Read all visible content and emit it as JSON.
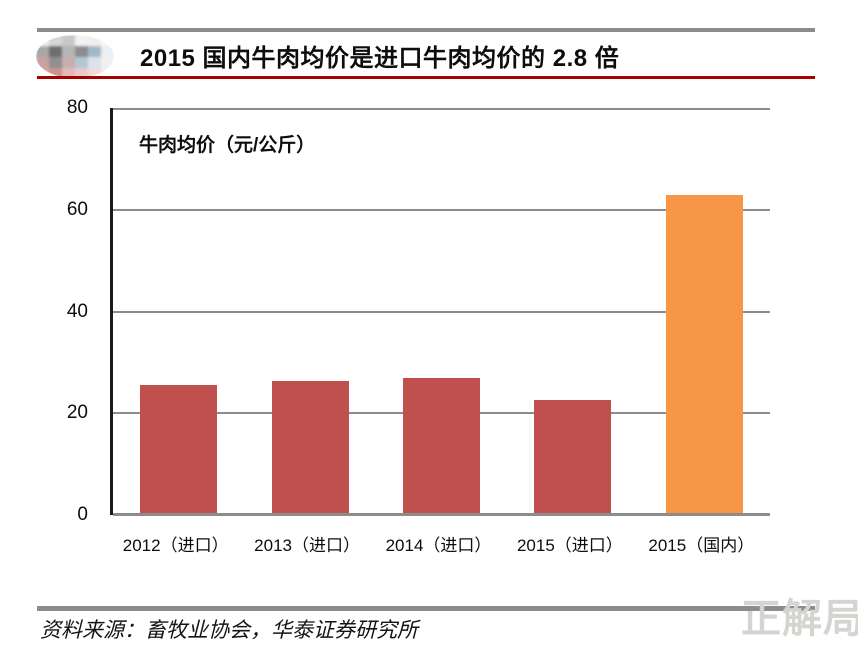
{
  "header": {
    "title": "2015 国内牛肉均价是进口牛肉均价的 2.8 倍"
  },
  "chart_data": {
    "type": "bar",
    "title": "2015 国内牛肉均价是进口牛肉均价的 2.8 倍",
    "inner_label": "牛肉均价（元/公斤）",
    "categories": [
      "2012（进口）",
      "2013（进口）",
      "2014（进口）",
      "2015（进口）",
      "2015（国内）"
    ],
    "values": [
      25.5,
      26.4,
      26.9,
      22.6,
      63
    ],
    "bar_colors": [
      "#c0504d",
      "#c0504d",
      "#c0504d",
      "#c0504d",
      "#f79646"
    ],
    "ylim": [
      0,
      80
    ],
    "yticks": [
      0,
      20,
      40,
      60,
      80
    ],
    "xlabel": "",
    "ylabel": "",
    "grid": true,
    "legend_position": "none"
  },
  "footer": {
    "source": "资料来源：畜牧业协会，华泰证券研究所"
  },
  "watermark": "正解局",
  "colors": {
    "import_bar": "#c0504d",
    "domestic_bar": "#f79646",
    "title_underline": "#a40000",
    "divider_gray": "#8c8c8c",
    "gridline_gray": "#8c8c8c",
    "axis_black": "#1a1a1a",
    "watermark_gray": "#d4d4d0"
  }
}
